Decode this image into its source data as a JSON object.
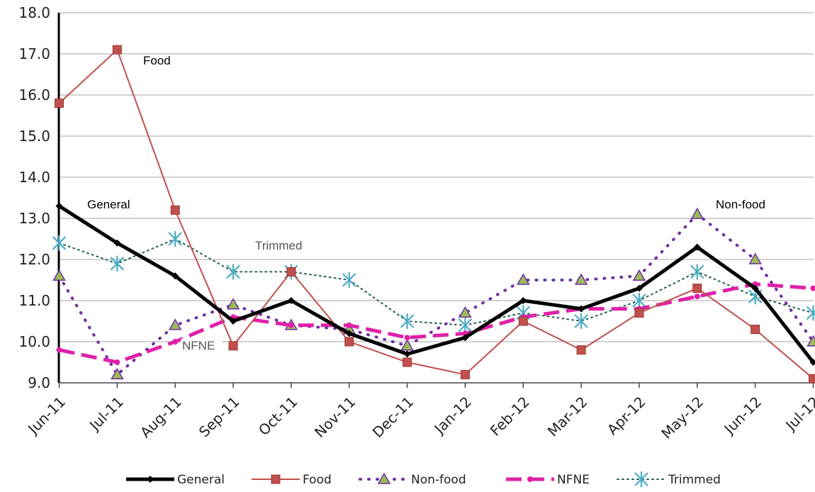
{
  "chart_data": {
    "type": "line",
    "categories": [
      "Jun-11",
      "Jul-11",
      "Aug-11",
      "Sep-11",
      "Oct-11",
      "Nov-11",
      "Dec-11",
      "Jan-12",
      "Feb-12",
      "Mar-12",
      "Apr-12",
      "May-12",
      "Jun-12",
      "Jul-12"
    ],
    "ylim": [
      9.0,
      18.0
    ],
    "yticks": [
      "9.0",
      "10.0",
      "11.0",
      "12.0",
      "13.0",
      "14.0",
      "15.0",
      "16.0",
      "17.0",
      "18.0"
    ],
    "grid": "horizontal",
    "legend_position": "bottom",
    "series": [
      {
        "name": "General",
        "color": "#000000",
        "values": [
          13.3,
          12.4,
          11.6,
          10.5,
          11.0,
          10.2,
          9.7,
          10.1,
          11.0,
          10.8,
          11.3,
          12.3,
          11.3,
          9.5
        ]
      },
      {
        "name": "Food",
        "color": "#c0504d",
        "values": [
          15.8,
          17.1,
          13.2,
          9.9,
          11.7,
          10.0,
          9.5,
          9.2,
          10.5,
          9.8,
          10.7,
          11.3,
          10.3,
          9.1
        ]
      },
      {
        "name": "Non-food",
        "color": "#7030a0",
        "values": [
          11.6,
          9.2,
          10.4,
          10.9,
          10.4,
          10.3,
          9.9,
          10.7,
          11.5,
          11.5,
          11.6,
          13.1,
          12.0,
          10.0
        ]
      },
      {
        "name": "NFNE",
        "color": "#e020a8",
        "values": [
          9.8,
          9.5,
          10.0,
          10.6,
          10.4,
          10.4,
          10.1,
          10.2,
          10.6,
          10.8,
          10.8,
          11.1,
          11.4,
          11.3
        ]
      },
      {
        "name": "Trimmed",
        "color": "#1f5f50",
        "marker_color": "#4bacc6",
        "values": [
          12.4,
          11.9,
          12.5,
          11.7,
          11.7,
          11.5,
          10.5,
          10.4,
          10.7,
          10.5,
          11.0,
          11.7,
          11.1,
          10.7
        ]
      }
    ],
    "annotations": [
      {
        "text": "Food"
      },
      {
        "text": "General"
      },
      {
        "text": "Trimmed"
      },
      {
        "text": "NFNE"
      },
      {
        "text": "Non-food"
      }
    ]
  }
}
